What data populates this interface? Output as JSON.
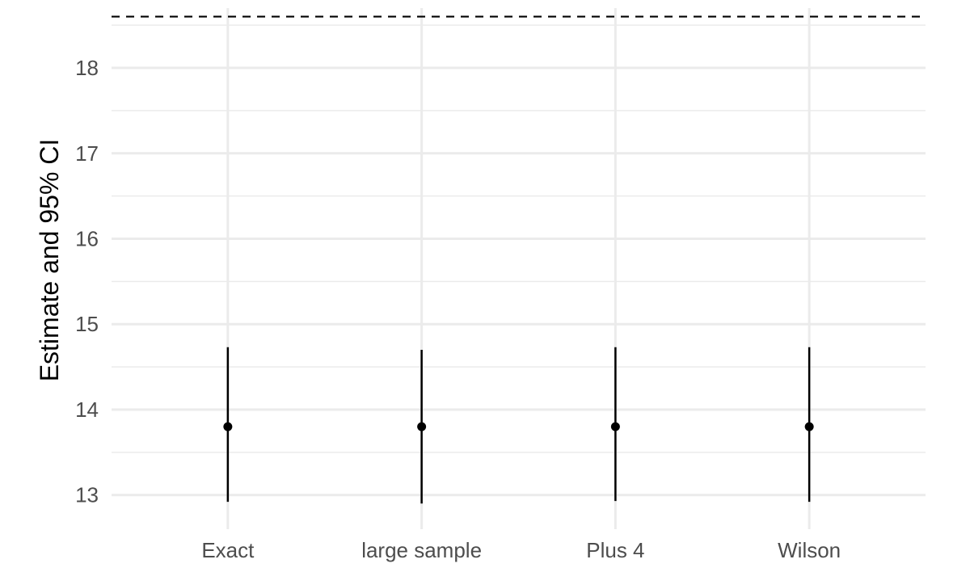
{
  "chart_data": {
    "type": "scatter",
    "title": "",
    "xlabel": "",
    "ylabel": "Estimate and 95% CI",
    "categories": [
      "Exact",
      "large sample",
      "Plus 4",
      "Wilson"
    ],
    "estimates": [
      13.8,
      13.8,
      13.8,
      13.8
    ],
    "ci_lower": [
      12.92,
      12.9,
      12.93,
      12.92
    ],
    "ci_upper": [
      14.73,
      14.7,
      14.73,
      14.73
    ],
    "reference_line": 18.6,
    "y_ticks": [
      13,
      14,
      15,
      16,
      17,
      18
    ],
    "y_tick_labels": [
      "13",
      "14",
      "15",
      "16",
      "17",
      "18"
    ],
    "ylim": [
      12.6,
      18.7
    ],
    "grid": true,
    "colors": {
      "point": "#000000",
      "errorbar": "#000000",
      "reference_line": "#000000",
      "grid": "#ebebeb",
      "tick_label": "#4d4d4d"
    }
  }
}
